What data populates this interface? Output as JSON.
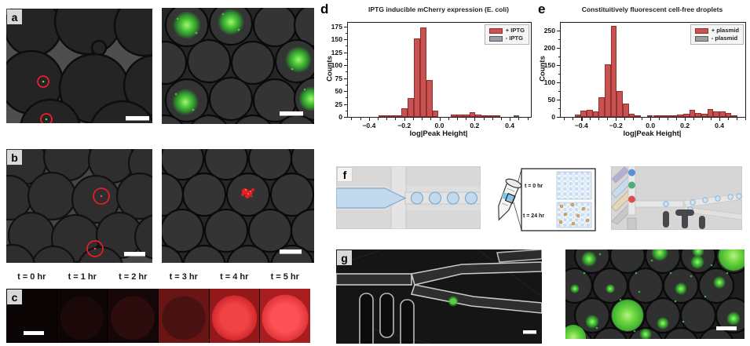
{
  "figure": {
    "panels": {
      "a": {
        "label": "a"
      },
      "b": {
        "label": "b"
      },
      "c": {
        "label": "c",
        "time_labels": [
          "t = 0 hr",
          "t = 1 hr",
          "t = 2 hr",
          "t = 3 hr",
          "t = 4 hr",
          "t = 5 hr"
        ]
      },
      "d": {
        "label": "d"
      },
      "e": {
        "label": "e"
      },
      "f": {
        "label": "f",
        "inset_labels": {
          "t0": "t = 0 hr",
          "t24": "t = 24 hr"
        }
      },
      "g": {
        "label": "g"
      }
    }
  },
  "colors": {
    "bar_red": "#c75251",
    "bar_red_edge": "#93302e",
    "bar_gray": "#9b9ea2",
    "bar_gray_edge": "#55585c",
    "annotation_red": "#ee1c2e",
    "fluor_green": "#4ec63f",
    "fluor_red": "#f01f1f",
    "droplet_blue": "#c3d9ed"
  },
  "chart_data": [
    {
      "id": "d",
      "type": "bar",
      "title": "IPTG inducible mCherry expression (E. coli)",
      "xlabel": "log|Peak Height|",
      "ylabel": "Counts",
      "xlim": [
        -0.52,
        0.52
      ],
      "ylim": [
        0,
        182
      ],
      "xticks": [
        -0.4,
        -0.2,
        0,
        0.2,
        0.4
      ],
      "xticklabels": [
        "−0.4",
        "−0.2",
        "0.0",
        "0.2",
        "0.4"
      ],
      "yticks": [
        0,
        25,
        50,
        75,
        100,
        125,
        150,
        175
      ],
      "minor_step_x": 0.05,
      "minor_step_y": 12.5,
      "bin_width": 0.035,
      "grid": false,
      "legend_position": "upper right",
      "legend": [
        {
          "label": "+ IPTG",
          "color": "#c75251",
          "edge": "#93302e"
        },
        {
          "label": "- IPTG",
          "color": "#9b9ea2",
          "edge": "#55585c"
        }
      ],
      "series": [
        {
          "name": "- IPTG",
          "color": "#9b9ea2",
          "edge": "#55585c",
          "bars": [
            [
              -0.345,
              2
            ],
            [
              -0.25,
              3
            ],
            [
              -0.215,
              3
            ],
            [
              -0.145,
              2
            ],
            [
              -0.11,
              2
            ],
            [
              0.17,
              1
            ],
            [
              0.42,
              1
            ]
          ]
        },
        {
          "name": "+ IPTG",
          "color": "#c75251",
          "edge": "#93302e",
          "bars": [
            [
              -0.345,
              2
            ],
            [
              -0.31,
              3
            ],
            [
              -0.275,
              2
            ],
            [
              -0.25,
              2
            ],
            [
              -0.215,
              17
            ],
            [
              -0.18,
              36
            ],
            [
              -0.145,
              152
            ],
            [
              -0.11,
              173
            ],
            [
              -0.075,
              72
            ],
            [
              -0.04,
              12
            ],
            [
              0.065,
              5
            ],
            [
              0.1,
              5
            ],
            [
              0.135,
              5
            ],
            [
              0.17,
              9
            ],
            [
              0.205,
              4
            ],
            [
              0.24,
              2
            ],
            [
              0.275,
              3
            ],
            [
              0.31,
              3
            ]
          ]
        }
      ]
    },
    {
      "id": "e",
      "type": "bar",
      "title": "Constituitively fluorescent cell-free droplets",
      "xlabel": "log|Peak Height|",
      "ylabel": "Counts",
      "xlim": [
        -0.52,
        0.55
      ],
      "ylim": [
        0,
        272
      ],
      "xticks": [
        -0.4,
        -0.2,
        0,
        0.2,
        0.4
      ],
      "xticklabels": [
        "−0.4",
        "−0.2",
        "0.0",
        "0.2",
        "0.4"
      ],
      "yticks": [
        0,
        50,
        100,
        150,
        200,
        250
      ],
      "minor_step_x": 0.05,
      "minor_step_y": 25,
      "bin_width": 0.035,
      "grid": false,
      "legend_position": "upper right",
      "legend": [
        {
          "label": "+ plasmid",
          "color": "#c75251",
          "edge": "#93302e"
        },
        {
          "label": "- plasmid",
          "color": "#9b9ea2",
          "edge": "#55585c"
        }
      ],
      "series": [
        {
          "name": "- plasmid",
          "color": "#9b9ea2",
          "edge": "#55585c",
          "bars": [
            [
              -0.265,
              4
            ],
            [
              -0.23,
              3
            ],
            [
              0.015,
              1
            ]
          ]
        },
        {
          "name": "+ plasmid",
          "color": "#c75251",
          "edge": "#93302e",
          "bars": [
            [
              -0.44,
              6
            ],
            [
              -0.405,
              18
            ],
            [
              -0.37,
              20
            ],
            [
              -0.335,
              17
            ],
            [
              -0.3,
              57
            ],
            [
              -0.265,
              153
            ],
            [
              -0.23,
              263
            ],
            [
              -0.195,
              75
            ],
            [
              -0.16,
              38
            ],
            [
              -0.125,
              8
            ],
            [
              -0.09,
              5
            ],
            [
              -0.02,
              4
            ],
            [
              0.015,
              2
            ],
            [
              0.05,
              3
            ],
            [
              0.085,
              4
            ],
            [
              0.12,
              5
            ],
            [
              0.155,
              6
            ],
            [
              0.19,
              8
            ],
            [
              0.225,
              20
            ],
            [
              0.26,
              12
            ],
            [
              0.295,
              10
            ],
            [
              0.33,
              22
            ],
            [
              0.365,
              15
            ],
            [
              0.4,
              17
            ],
            [
              0.435,
              12
            ],
            [
              0.47,
              4
            ]
          ]
        }
      ]
    }
  ]
}
